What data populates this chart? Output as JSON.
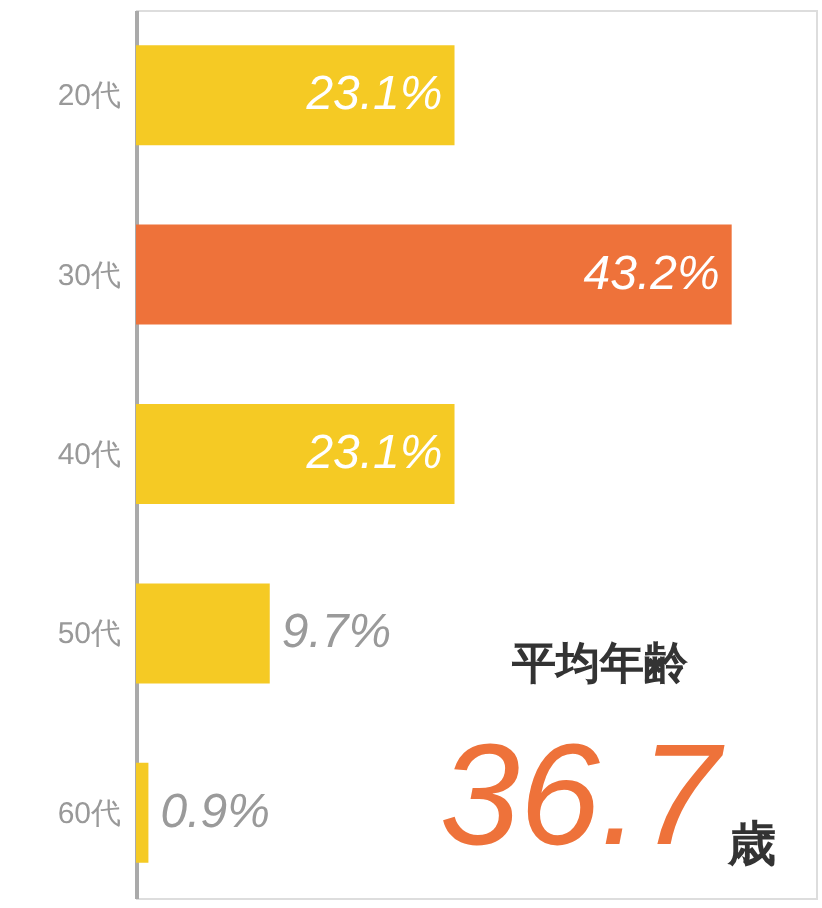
{
  "chart_data": {
    "type": "bar",
    "orientation": "horizontal",
    "categories": [
      "20代",
      "30代",
      "40代",
      "50代",
      "60代"
    ],
    "values": [
      23.1,
      43.2,
      23.1,
      9.7,
      0.9
    ],
    "colors": [
      "#f5ca24",
      "#ee723a",
      "#f5ca24",
      "#f5ca24",
      "#f5ca24"
    ],
    "value_labels": [
      "23.1%",
      "43.2%",
      "23.1%",
      "9.7%",
      "0.9%"
    ],
    "annotations": [
      "平均年齢",
      "36.7",
      "歳"
    ]
  }
}
